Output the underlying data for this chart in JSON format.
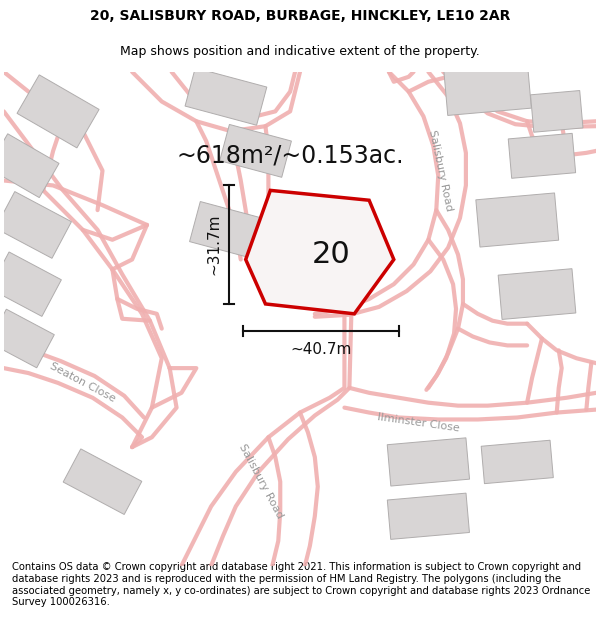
{
  "title_line1": "20, SALISBURY ROAD, BURBAGE, HINCKLEY, LE10 2AR",
  "title_line2": "Map shows position and indicative extent of the property.",
  "footer_text": "Contains OS data © Crown copyright and database right 2021. This information is subject to Crown copyright and database rights 2023 and is reproduced with the permission of HM Land Registry. The polygons (including the associated geometry, namely x, y co-ordinates) are subject to Crown copyright and database rights 2023 Ordnance Survey 100026316.",
  "area_label": "~618m²/~0.153ac.",
  "width_label": "~40.7m",
  "height_label": "~31.7m",
  "plot_number": "20",
  "background_color": "#ffffff",
  "plot_fill": "#f5f0f0",
  "plot_edge": "#cc0000",
  "plot_edge_width": 2.5,
  "dim_line_color": "#111111",
  "title_fontsize": 10,
  "subtitle_fontsize": 9,
  "footer_fontsize": 7.2,
  "label_fontsize": 11,
  "plot_num_fontsize": 22,
  "area_fontsize": 17,
  "street_label_fontsize": 8,
  "road_color": "#f0b0b0",
  "road_lw": 5,
  "building_face": "#d8d5d5",
  "building_edge": "#b0adad"
}
